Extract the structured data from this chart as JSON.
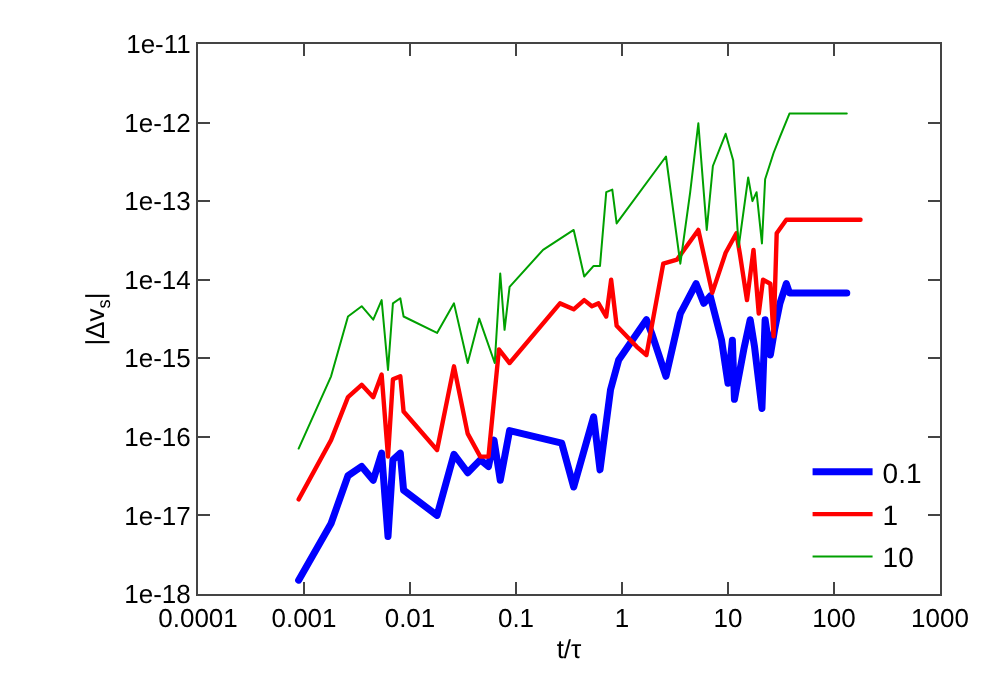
{
  "chart_data": {
    "type": "line",
    "xlabel": "t/τ",
    "ylabel": "|Δv$_{s}$|",
    "log": "xy",
    "legend": "bottom right",
    "marker": "none",
    "line_style": "solid",
    "xlim": [
      0.0001,
      1000
    ],
    "xticks": [
      0.0001,
      0.001,
      0.01,
      0.1,
      1,
      10,
      100,
      1000
    ],
    "ylim": [
      1e-18,
      1e-11
    ],
    "yticks": [
      1e-18,
      1e-17,
      1e-16,
      1e-15,
      1e-14,
      1e-13,
      1e-12,
      1e-11
    ],
    "series": [
      {
        "name": "0.1",
        "color": "#0000ff",
        "x": [
          0.00089,
          0.0018,
          0.0026,
          0.0035,
          0.0045,
          0.0054,
          0.0062,
          0.0069,
          0.0081,
          0.0087,
          0.018,
          0.026,
          0.035,
          0.046,
          0.055,
          0.062,
          0.071,
          0.087,
          0.27,
          0.35,
          0.54,
          0.62,
          0.78,
          0.93,
          1.7,
          1.9,
          2.6,
          3.55,
          5.0,
          5.9,
          6.8,
          8.7,
          10,
          11,
          11.5,
          14.1,
          16.2,
          17.8,
          20.9,
          22.4,
          25.1,
          27.5,
          30.9,
          35.5,
          38,
          74,
          132
        ],
        "values": [
          1.5e-18,
          7.9e-18,
          3.2e-17,
          4.2e-17,
          2.8e-17,
          6.2e-17,
          5.4e-18,
          5.1e-17,
          6.2e-17,
          2.1e-17,
          1e-17,
          6e-17,
          3.5e-17,
          5.1e-17,
          4.2e-17,
          9.1e-17,
          2.8e-17,
          1.2e-16,
          8.3e-17,
          2.3e-17,
          1.8e-16,
          3.8e-17,
          4e-16,
          9.5e-16,
          3.1e-15,
          2.1e-15,
          5.9e-16,
          3.7e-15,
          8.9e-15,
          5e-15,
          6.2e-15,
          1.7e-15,
          4.8e-16,
          1.7e-15,
          3e-16,
          1.3e-15,
          3.1e-15,
          1.4e-15,
          2.3e-16,
          3.1e-15,
          1.1e-15,
          2.3e-15,
          5e-15,
          8.9e-15,
          6.8e-15,
          6.8e-15,
          6.8e-15
        ]
      },
      {
        "name": "1",
        "color": "#ff0000",
        "x": [
          0.00089,
          0.0018,
          0.0026,
          0.0035,
          0.0045,
          0.0054,
          0.0062,
          0.0069,
          0.0081,
          0.0087,
          0.018,
          0.026,
          0.035,
          0.046,
          0.055,
          0.069,
          0.087,
          0.26,
          0.35,
          0.44,
          0.52,
          0.6,
          0.71,
          0.79,
          0.89,
          1.38,
          1.7,
          2.45,
          3.3,
          5.25,
          7.1,
          9.5,
          12,
          12.9,
          15.1,
          17.4,
          19.5,
          21.4,
          25.1,
          26.9,
          28.8,
          35.5,
          178
        ],
        "values": [
          1.6e-17,
          9.1e-17,
          3.2e-16,
          4.6e-16,
          3.2e-16,
          6.2e-16,
          5.6e-17,
          5.4e-16,
          5.9e-16,
          2.1e-16,
          6.8e-17,
          7.9e-16,
          1.1e-16,
          5.6e-17,
          5.6e-17,
          1.3e-15,
          8.7e-16,
          5e-15,
          4.2e-15,
          5.5e-15,
          4.6e-15,
          5e-15,
          3.4e-15,
          1e-14,
          2.6e-15,
          1.4e-15,
          1.1e-15,
          1.6e-14,
          1.8e-14,
          4.3e-14,
          6.8e-15,
          2.2e-14,
          3.9e-14,
          2.2e-14,
          5.5e-15,
          2.4e-14,
          3.7e-15,
          1e-14,
          8.9e-15,
          1.9e-15,
          3.9e-14,
          5.8e-14,
          5.8e-14
        ]
      },
      {
        "name": "10",
        "color": "#00a000",
        "x": [
          0.00089,
          0.0018,
          0.0026,
          0.0035,
          0.0045,
          0.0054,
          0.0062,
          0.0069,
          0.0081,
          0.0087,
          0.018,
          0.026,
          0.035,
          0.045,
          0.063,
          0.071,
          0.078,
          0.087,
          0.18,
          0.35,
          0.44,
          0.54,
          0.62,
          0.71,
          0.81,
          0.89,
          2.6,
          3.55,
          4.4,
          5.25,
          6.3,
          7.2,
          9.5,
          11.2,
          12.6,
          15.5,
          17,
          18.6,
          20.9,
          22.4,
          26.9,
          30.9,
          38,
          132
        ],
        "values": [
          7.1e-17,
          5.9e-16,
          3.4e-15,
          4.6e-15,
          3.1e-15,
          5.5e-15,
          7.1e-16,
          5e-15,
          5.8e-15,
          3.4e-15,
          2.1e-15,
          5e-15,
          8.7e-16,
          3.2e-15,
          8.7e-16,
          1.2e-14,
          2.3e-15,
          8.1e-15,
          2.4e-14,
          4.3e-14,
          1.1e-14,
          1.5e-14,
          1.5e-14,
          1.3e-13,
          1.4e-13,
          5.2e-14,
          3.7e-13,
          1.6e-14,
          1.3e-13,
          9.8e-13,
          4.3e-14,
          2.8e-13,
          7.2e-13,
          3.3e-13,
          2.6e-14,
          2e-13,
          1e-13,
          1.3e-13,
          2.9e-14,
          1.9e-13,
          4.1e-13,
          6.6e-13,
          1.3e-12,
          1.3e-12
        ]
      }
    ]
  }
}
